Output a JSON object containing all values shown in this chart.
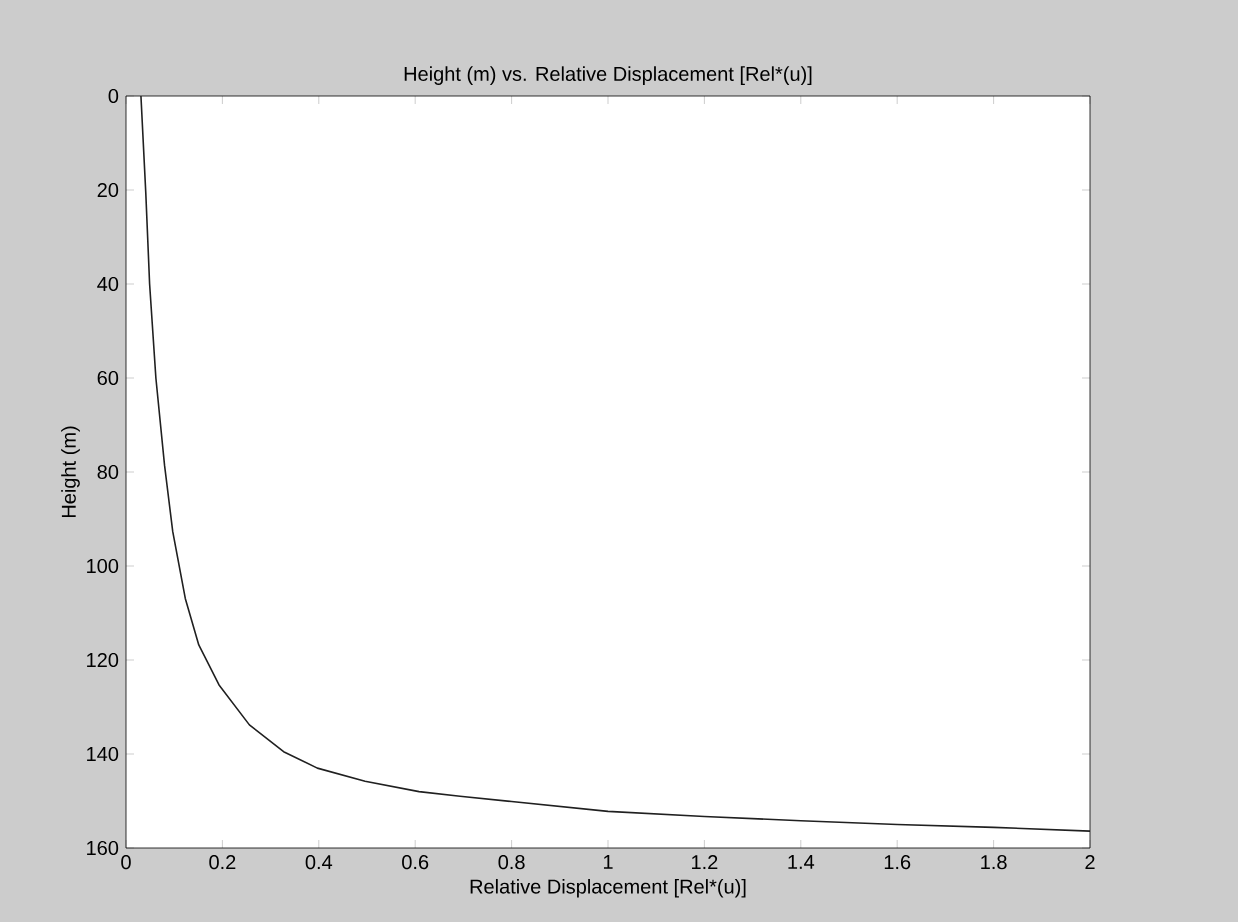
{
  "chart_data": {
    "type": "line",
    "title": "Height (m) vs. Relative Displacement [Rel*(u)]",
    "xlabel": "Relative Displacement [Rel*(u)]",
    "ylabel": "Height (m)",
    "x": [
      0.031,
      0.041,
      0.049,
      0.062,
      0.08,
      0.097,
      0.123,
      0.151,
      0.193,
      0.256,
      0.327,
      0.397,
      0.496,
      0.608,
      0.693,
      0.8,
      1.0,
      1.2,
      1.4,
      1.6,
      1.8,
      2.0
    ],
    "series": [
      {
        "color": "#202020",
        "values": [
          0,
          20.5,
          40,
          60,
          78.6,
          92.7,
          106.9,
          116.8,
          125.3,
          133.8,
          139.5,
          143,
          145.8,
          148,
          149,
          150.1,
          152.2,
          153.3,
          154.2,
          155,
          155.6,
          156.4
        ]
      }
    ],
    "xlim": [
      0,
      2
    ],
    "ylim": [
      160,
      0
    ],
    "xticks": [
      0,
      0.2,
      0.4,
      0.6,
      0.8,
      1,
      1.2,
      1.4,
      1.6,
      1.8,
      2
    ],
    "yticks": [
      0,
      20,
      40,
      60,
      80,
      100,
      120,
      140,
      160
    ],
    "grid": false,
    "marker": "none",
    "line_style": "solid"
  }
}
